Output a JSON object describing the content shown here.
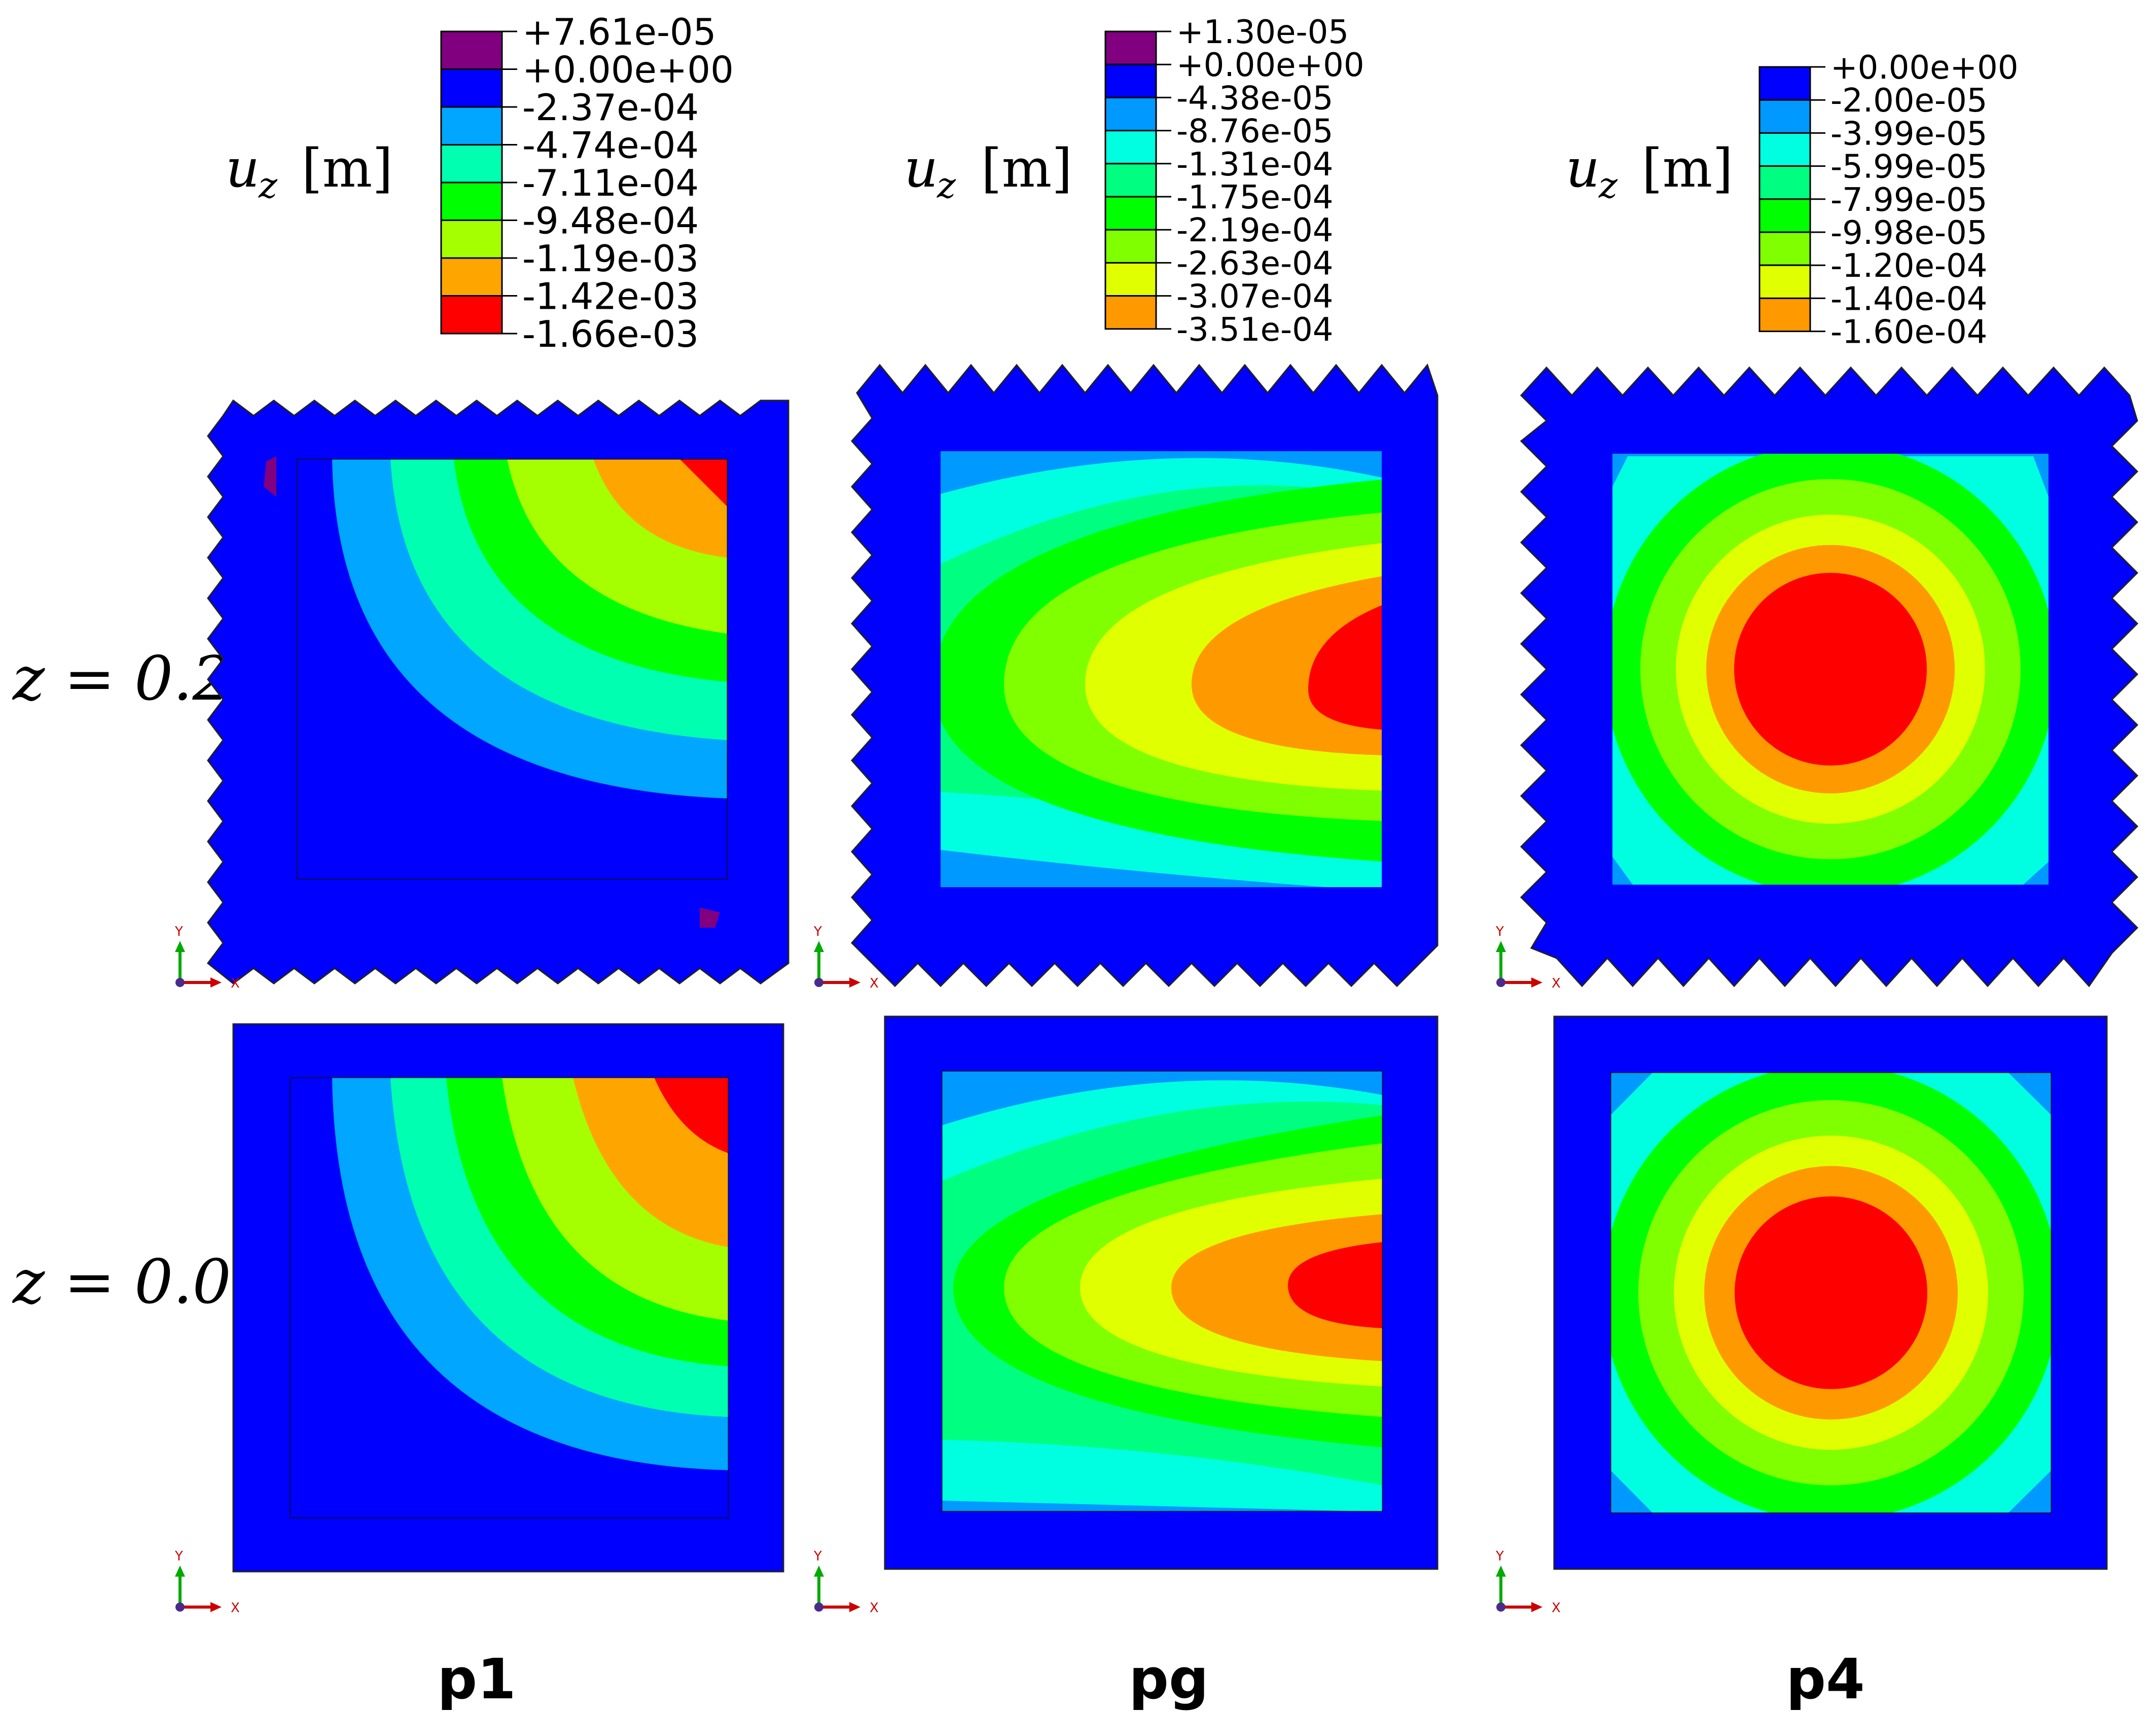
{
  "colors": {
    "c0": "#800080",
    "c1": "#0000ff",
    "c2": "#00a6ff",
    "c3": "#00ffd5",
    "c4": "#00ff8a",
    "c5": "#00ff00",
    "c6": "#80ff00",
    "c7": "#a6ff00",
    "c8": "#ccff00",
    "c9": "#e6ff00",
    "c10": "#ff9900",
    "c11": "#ff0000",
    "axis_x": "#cc0000",
    "axis_y": "#00aa00"
  },
  "row_labels": {
    "top": "z = 0.2",
    "bottom": "z = 0.0"
  },
  "quantity": {
    "symbol": "u",
    "subscript": "z",
    "unit": "[m]"
  },
  "triad": {
    "x": "X",
    "y": "Y"
  },
  "panels": [
    {
      "title": "p1",
      "legend": {
        "values": [
          "+7.61e-05",
          "+0.00e+00",
          "-2.37e-04",
          "-4.74e-04",
          "-7.11e-04",
          "-9.48e-04",
          "-1.19e-03",
          "-1.42e-03",
          "-1.66e-03"
        ],
        "colors": [
          "#800080",
          "#0000ff",
          "#00a6ff",
          "#00ffb0",
          "#00ff00",
          "#a6ff00",
          "#ffa500",
          "#ff0000"
        ]
      }
    },
    {
      "title": "pg",
      "legend": {
        "values": [
          "+1.30e-05",
          "+0.00e+00",
          "-4.38e-05",
          "-8.76e-05",
          "-1.31e-04",
          "-1.75e-04",
          "-2.19e-04",
          "-2.63e-04",
          "-3.07e-04",
          "-3.51e-04"
        ],
        "colors": [
          "#800080",
          "#0000ff",
          "#0099ff",
          "#00ffe0",
          "#00ff80",
          "#00ff00",
          "#80ff00",
          "#e0ff00",
          "#ff9900",
          "#ff0000"
        ]
      }
    },
    {
      "title": "p4",
      "legend": {
        "values": [
          "+0.00e+00",
          "-2.00e-05",
          "-3.99e-05",
          "-5.99e-05",
          "-7.99e-05",
          "-9.98e-05",
          "-1.20e-04",
          "-1.40e-04",
          "-1.60e-04"
        ],
        "colors": [
          "#0000ff",
          "#0099ff",
          "#00ffe0",
          "#00ff80",
          "#00ff00",
          "#80ff00",
          "#e0ff00",
          "#ff9900",
          "#ff0000"
        ]
      }
    }
  ]
}
